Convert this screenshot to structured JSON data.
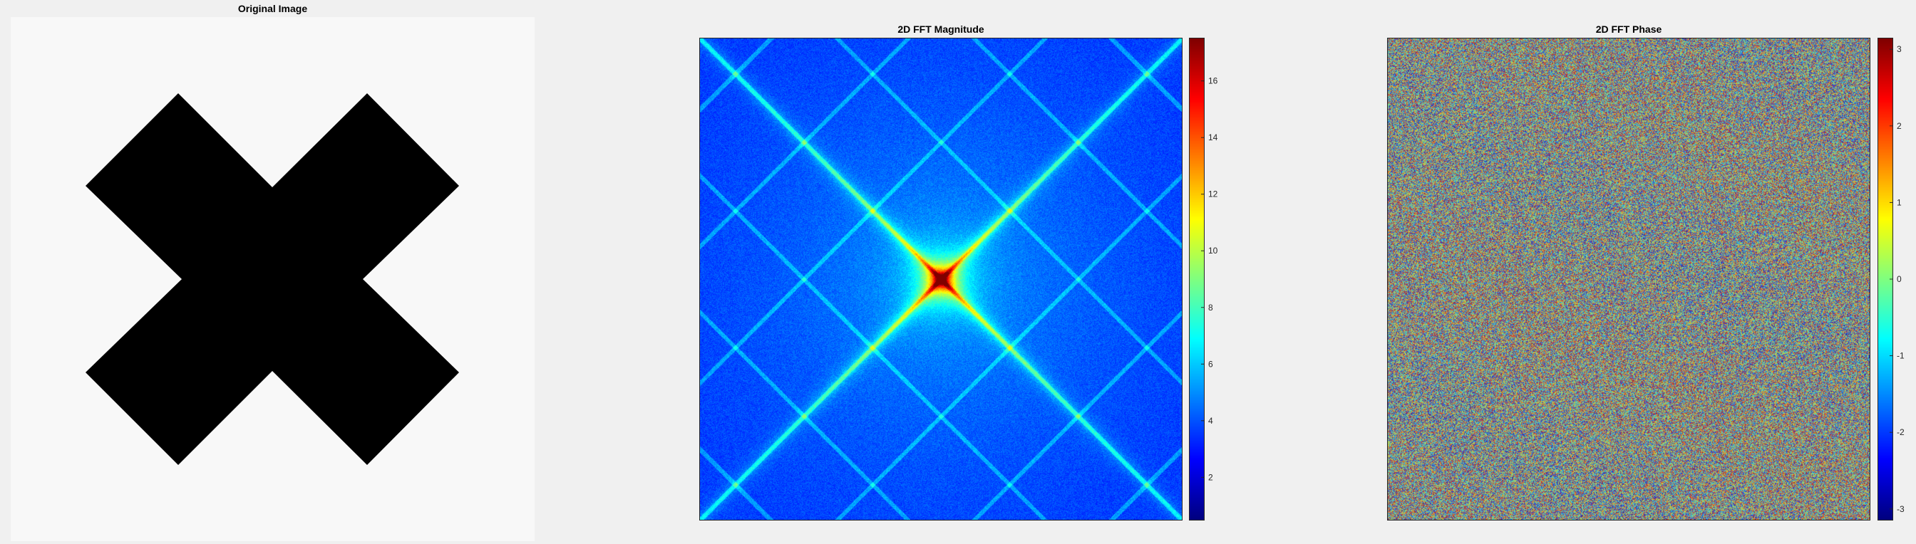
{
  "panels": [
    {
      "title": "Original Image"
    },
    {
      "title": "2D FFT Magnitude"
    },
    {
      "title": "2D FFT Phase"
    }
  ],
  "colors": {
    "figure_bg": "#f0f0f0",
    "image_bg": "#f8f8f8",
    "cross": "#000000",
    "axis": "#262626"
  },
  "colormap": "jet",
  "magnitude_colorbar": {
    "min": 0.5,
    "max": 17.5,
    "ticks": [
      2,
      4,
      6,
      8,
      10,
      12,
      14,
      16
    ]
  },
  "phase_colorbar": {
    "min": -3.1416,
    "max": 3.1416,
    "ticks": [
      -3,
      -2,
      -1,
      0,
      1,
      2,
      3
    ]
  }
}
